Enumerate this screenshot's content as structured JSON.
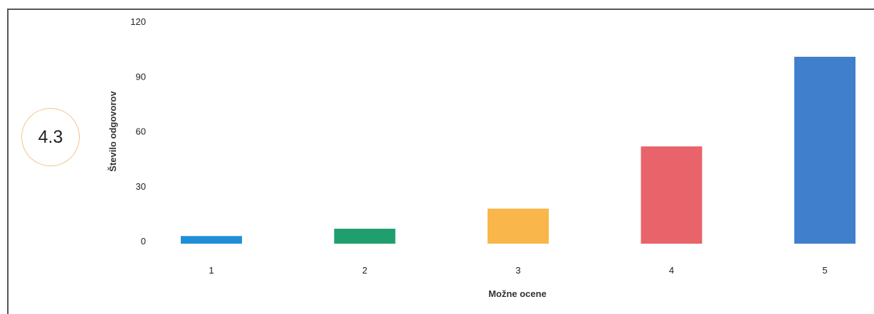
{
  "badge": {
    "value": "4.3"
  },
  "chart_data": {
    "type": "bar",
    "categories": [
      "1",
      "2",
      "3",
      "4",
      "5"
    ],
    "values": [
      3,
      7,
      18,
      52,
      101
    ],
    "xlabel": "Možne ocene",
    "ylabel": "Število odgovorov",
    "ylim": [
      0,
      120
    ],
    "yticks": [
      0,
      30,
      60,
      90,
      120
    ],
    "colors": [
      "#1f8fd8",
      "#1f9e6e",
      "#f9b64a",
      "#e8646a",
      "#3f7fcb"
    ],
    "grid": false,
    "legend": "none"
  }
}
